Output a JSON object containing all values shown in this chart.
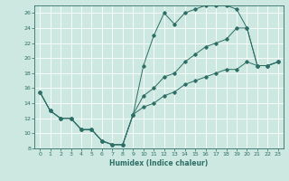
{
  "title": "",
  "xlabel": "Humidex (Indice chaleur)",
  "xlim": [
    -0.5,
    23.5
  ],
  "ylim": [
    8,
    27
  ],
  "yticks": [
    8,
    10,
    12,
    14,
    16,
    18,
    20,
    22,
    24,
    26
  ],
  "xticks": [
    0,
    1,
    2,
    3,
    4,
    5,
    6,
    7,
    8,
    9,
    10,
    11,
    12,
    13,
    14,
    15,
    16,
    17,
    18,
    19,
    20,
    21,
    22,
    23
  ],
  "bg_color": "#cce8e0",
  "line_color": "#2d6e66",
  "grid_color": "#ffffff",
  "line1_x": [
    0,
    1,
    2,
    3,
    4,
    5,
    6,
    7,
    8,
    9,
    10,
    11,
    12,
    13,
    14,
    15,
    16,
    17,
    18,
    19,
    20,
    21,
    22,
    23
  ],
  "line1_y": [
    15.5,
    13.0,
    12.0,
    12.0,
    10.5,
    10.5,
    9.0,
    8.5,
    8.5,
    12.5,
    19.0,
    23.0,
    26.0,
    24.5,
    26.0,
    26.5,
    27.0,
    27.0,
    27.0,
    26.5,
    24.0,
    19.0,
    19.0,
    19.5
  ],
  "line2_x": [
    0,
    1,
    2,
    3,
    4,
    5,
    6,
    7,
    8,
    9,
    10,
    11,
    12,
    13,
    14,
    15,
    16,
    17,
    18,
    19,
    20,
    21,
    22,
    23
  ],
  "line2_y": [
    15.5,
    13.0,
    12.0,
    12.0,
    10.5,
    10.5,
    9.0,
    8.5,
    8.5,
    12.5,
    13.5,
    14.0,
    15.0,
    15.5,
    16.5,
    17.0,
    17.5,
    18.0,
    18.5,
    18.5,
    19.5,
    19.0,
    19.0,
    19.5
  ],
  "line3_x": [
    0,
    1,
    2,
    3,
    4,
    5,
    6,
    7,
    8,
    9,
    10,
    11,
    12,
    13,
    14,
    15,
    16,
    17,
    18,
    19,
    20,
    21,
    22,
    23
  ],
  "line3_y": [
    15.5,
    13.0,
    12.0,
    12.0,
    10.5,
    10.5,
    9.0,
    8.5,
    8.5,
    12.5,
    15.0,
    16.0,
    17.5,
    18.0,
    19.5,
    20.5,
    21.5,
    22.0,
    22.5,
    24.0,
    24.0,
    19.0,
    19.0,
    19.5
  ]
}
